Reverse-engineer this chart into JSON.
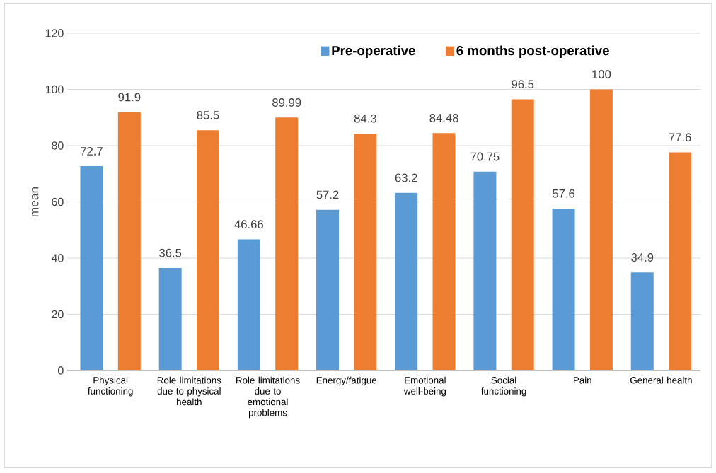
{
  "chart_data": {
    "type": "bar",
    "categories": [
      "Physical functioning",
      "Role limitations due to physical health",
      "Role limitations due to emotional problems",
      "Energy/fatigue",
      "Emotional well-being",
      "Social functioning",
      "Pain",
      "General health"
    ],
    "series": [
      {
        "name": "Pre-operative",
        "color": "#5b9bd5",
        "values": [
          72.7,
          36.5,
          46.66,
          57.2,
          63.2,
          70.75,
          57.6,
          34.9
        ]
      },
      {
        "name": "6 months post-operative",
        "color": "#ed7d31",
        "values": [
          91.9,
          85.5,
          89.99,
          84.3,
          84.48,
          96.5,
          100,
          77.6
        ]
      }
    ],
    "ylabel": "mean",
    "ylim": [
      0,
      120
    ],
    "yticks": [
      0,
      20,
      40,
      60,
      80,
      100,
      120
    ],
    "grid": "y",
    "legend": "top",
    "data_labels": true
  }
}
